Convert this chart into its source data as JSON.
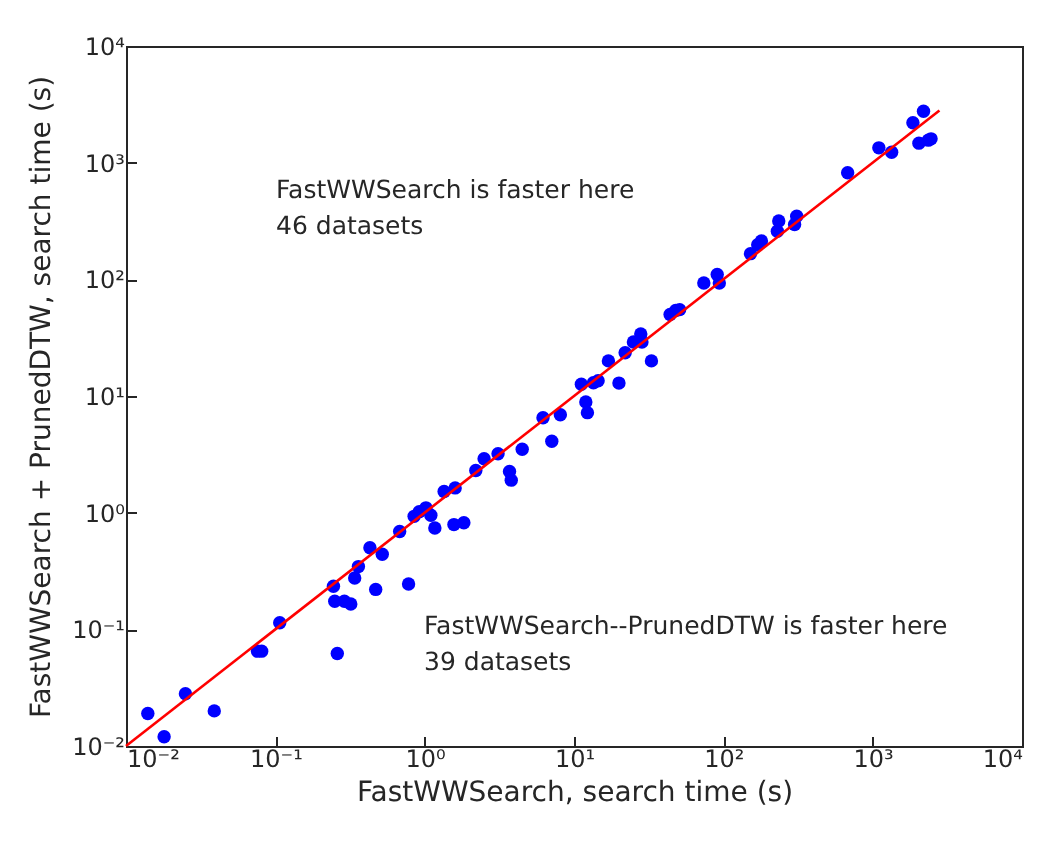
{
  "chart_data": {
    "type": "scatter",
    "xlabel": "FastWWSearch, search time (s)",
    "ylabel": "FastWWSearch + PrunedDTW, search time (s)",
    "annotations": [
      "FastWWSearch is faster here\n46 datasets",
      "FastWWSearch--PrunedDTW is faster here\n39 datasets"
    ],
    "log": "xy",
    "grid": false,
    "xlim": [
      0.01,
      10000
    ],
    "ylim": [
      0.01,
      10000
    ],
    "xticks": [
      {
        "value": 0.01,
        "label": "10⁻²"
      },
      {
        "value": 0.1,
        "label": "10⁻¹"
      },
      {
        "value": 1,
        "label": "10⁰"
      },
      {
        "value": 10,
        "label": "10¹"
      },
      {
        "value": 100,
        "label": "10²"
      },
      {
        "value": 1000,
        "label": "10³"
      },
      {
        "value": 10000,
        "label": "10⁴"
      }
    ],
    "yticks": [
      {
        "value": 0.01,
        "label": "10⁻²"
      },
      {
        "value": 0.1,
        "label": "10⁻¹"
      },
      {
        "value": 1,
        "label": "10⁰"
      },
      {
        "value": 10,
        "label": "10¹"
      },
      {
        "value": 100,
        "label": "10²"
      },
      {
        "value": 1000,
        "label": "10³"
      },
      {
        "value": 10000,
        "label": "10⁴"
      }
    ],
    "series": [
      {
        "color": "#0000ff",
        "marker": "circle",
        "x": [
          0.014,
          0.018,
          0.025,
          0.039,
          0.076,
          0.081,
          0.107,
          0.245,
          0.25,
          0.26,
          0.29,
          0.32,
          0.34,
          0.36,
          0.43,
          0.47,
          0.52,
          0.78,
          0.68,
          0.85,
          0.92,
          1.02,
          1.1,
          1.17,
          1.35,
          1.6,
          1.57,
          1.83,
          2.2,
          2.5,
          3.1,
          3.7,
          3.8,
          4.5,
          6.2,
          7.1,
          8.1,
          11.2,
          12,
          12.3,
          13.5,
          14.5,
          17,
          20,
          22,
          25,
          28,
          28.5,
          33,
          44,
          48,
          51,
          74,
          91,
          94,
          152,
          170,
          180,
          230,
          235,
          300,
          310,
          680,
          1100,
          1340,
          1860,
          2190,
          2040,
          2360,
          2460
        ],
        "values": [
          0.019,
          0.012,
          0.028,
          0.02,
          0.065,
          0.065,
          0.114,
          0.234,
          0.174,
          0.062,
          0.174,
          0.165,
          0.275,
          0.345,
          0.5,
          0.22,
          0.44,
          0.245,
          0.69,
          0.93,
          1.02,
          1.1,
          0.95,
          0.74,
          1.52,
          1.63,
          0.79,
          0.82,
          2.3,
          2.9,
          3.2,
          2.25,
          1.9,
          3.5,
          6.5,
          4.1,
          6.9,
          12.6,
          8.9,
          7.2,
          13,
          13.5,
          20,
          12.9,
          23.5,
          29,
          34,
          29,
          20,
          50,
          54,
          55,
          93,
          110,
          93,
          166,
          198,
          213,
          258,
          316,
          295,
          347,
          820,
          1340,
          1230,
          2200,
          2760,
          1470,
          1560,
          1600
        ]
      },
      {
        "type": "line",
        "color": "#ff0000",
        "x": [
          0.01,
          2800
        ],
        "values": [
          0.01,
          2800
        ]
      }
    ]
  }
}
